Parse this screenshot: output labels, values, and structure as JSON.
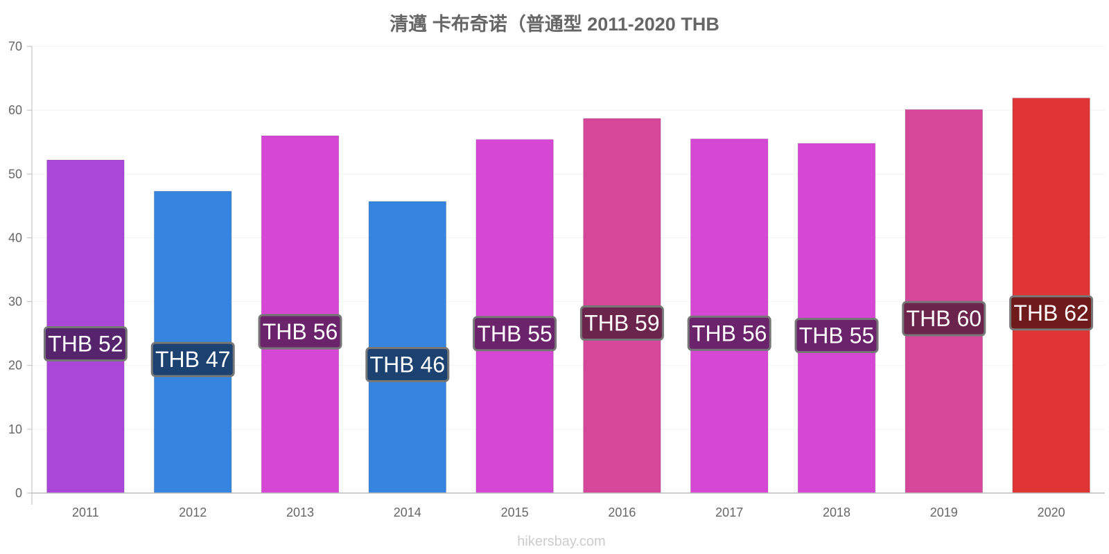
{
  "chart_data": {
    "type": "bar",
    "title": "清邁 卡布奇诺（普通型 2011-2020 THB",
    "categories": [
      "2011",
      "2012",
      "2013",
      "2014",
      "2015",
      "2016",
      "2017",
      "2018",
      "2019",
      "2020"
    ],
    "values": [
      52.2,
      47.3,
      56.0,
      45.7,
      55.4,
      58.7,
      55.5,
      54.8,
      60.1,
      61.9
    ],
    "data_labels": [
      "THB 52",
      "THB 47",
      "THB 56",
      "THB 46",
      "THB 55",
      "THB 59",
      "THB 56",
      "THB 55",
      "THB 60",
      "THB 62"
    ],
    "bar_colors": [
      "#aa47d8",
      "#3584e0",
      "#d647d6",
      "#3584e0",
      "#d647d6",
      "#d74799",
      "#d647d6",
      "#d647d6",
      "#d74799",
      "#e03535"
    ],
    "label_colors": [
      "#55246c",
      "#1b4270",
      "#6b246b",
      "#1b4270",
      "#6b246b",
      "#6b244c",
      "#6b246b",
      "#6b246b",
      "#6b244c",
      "#701b1b"
    ],
    "ylim": [
      0,
      70
    ],
    "yticks": [
      0,
      10,
      20,
      30,
      40,
      50,
      60,
      70
    ],
    "xlabel": "",
    "ylabel": "",
    "grid": true,
    "legend": "none"
  },
  "watermark": "hikersbay.com"
}
